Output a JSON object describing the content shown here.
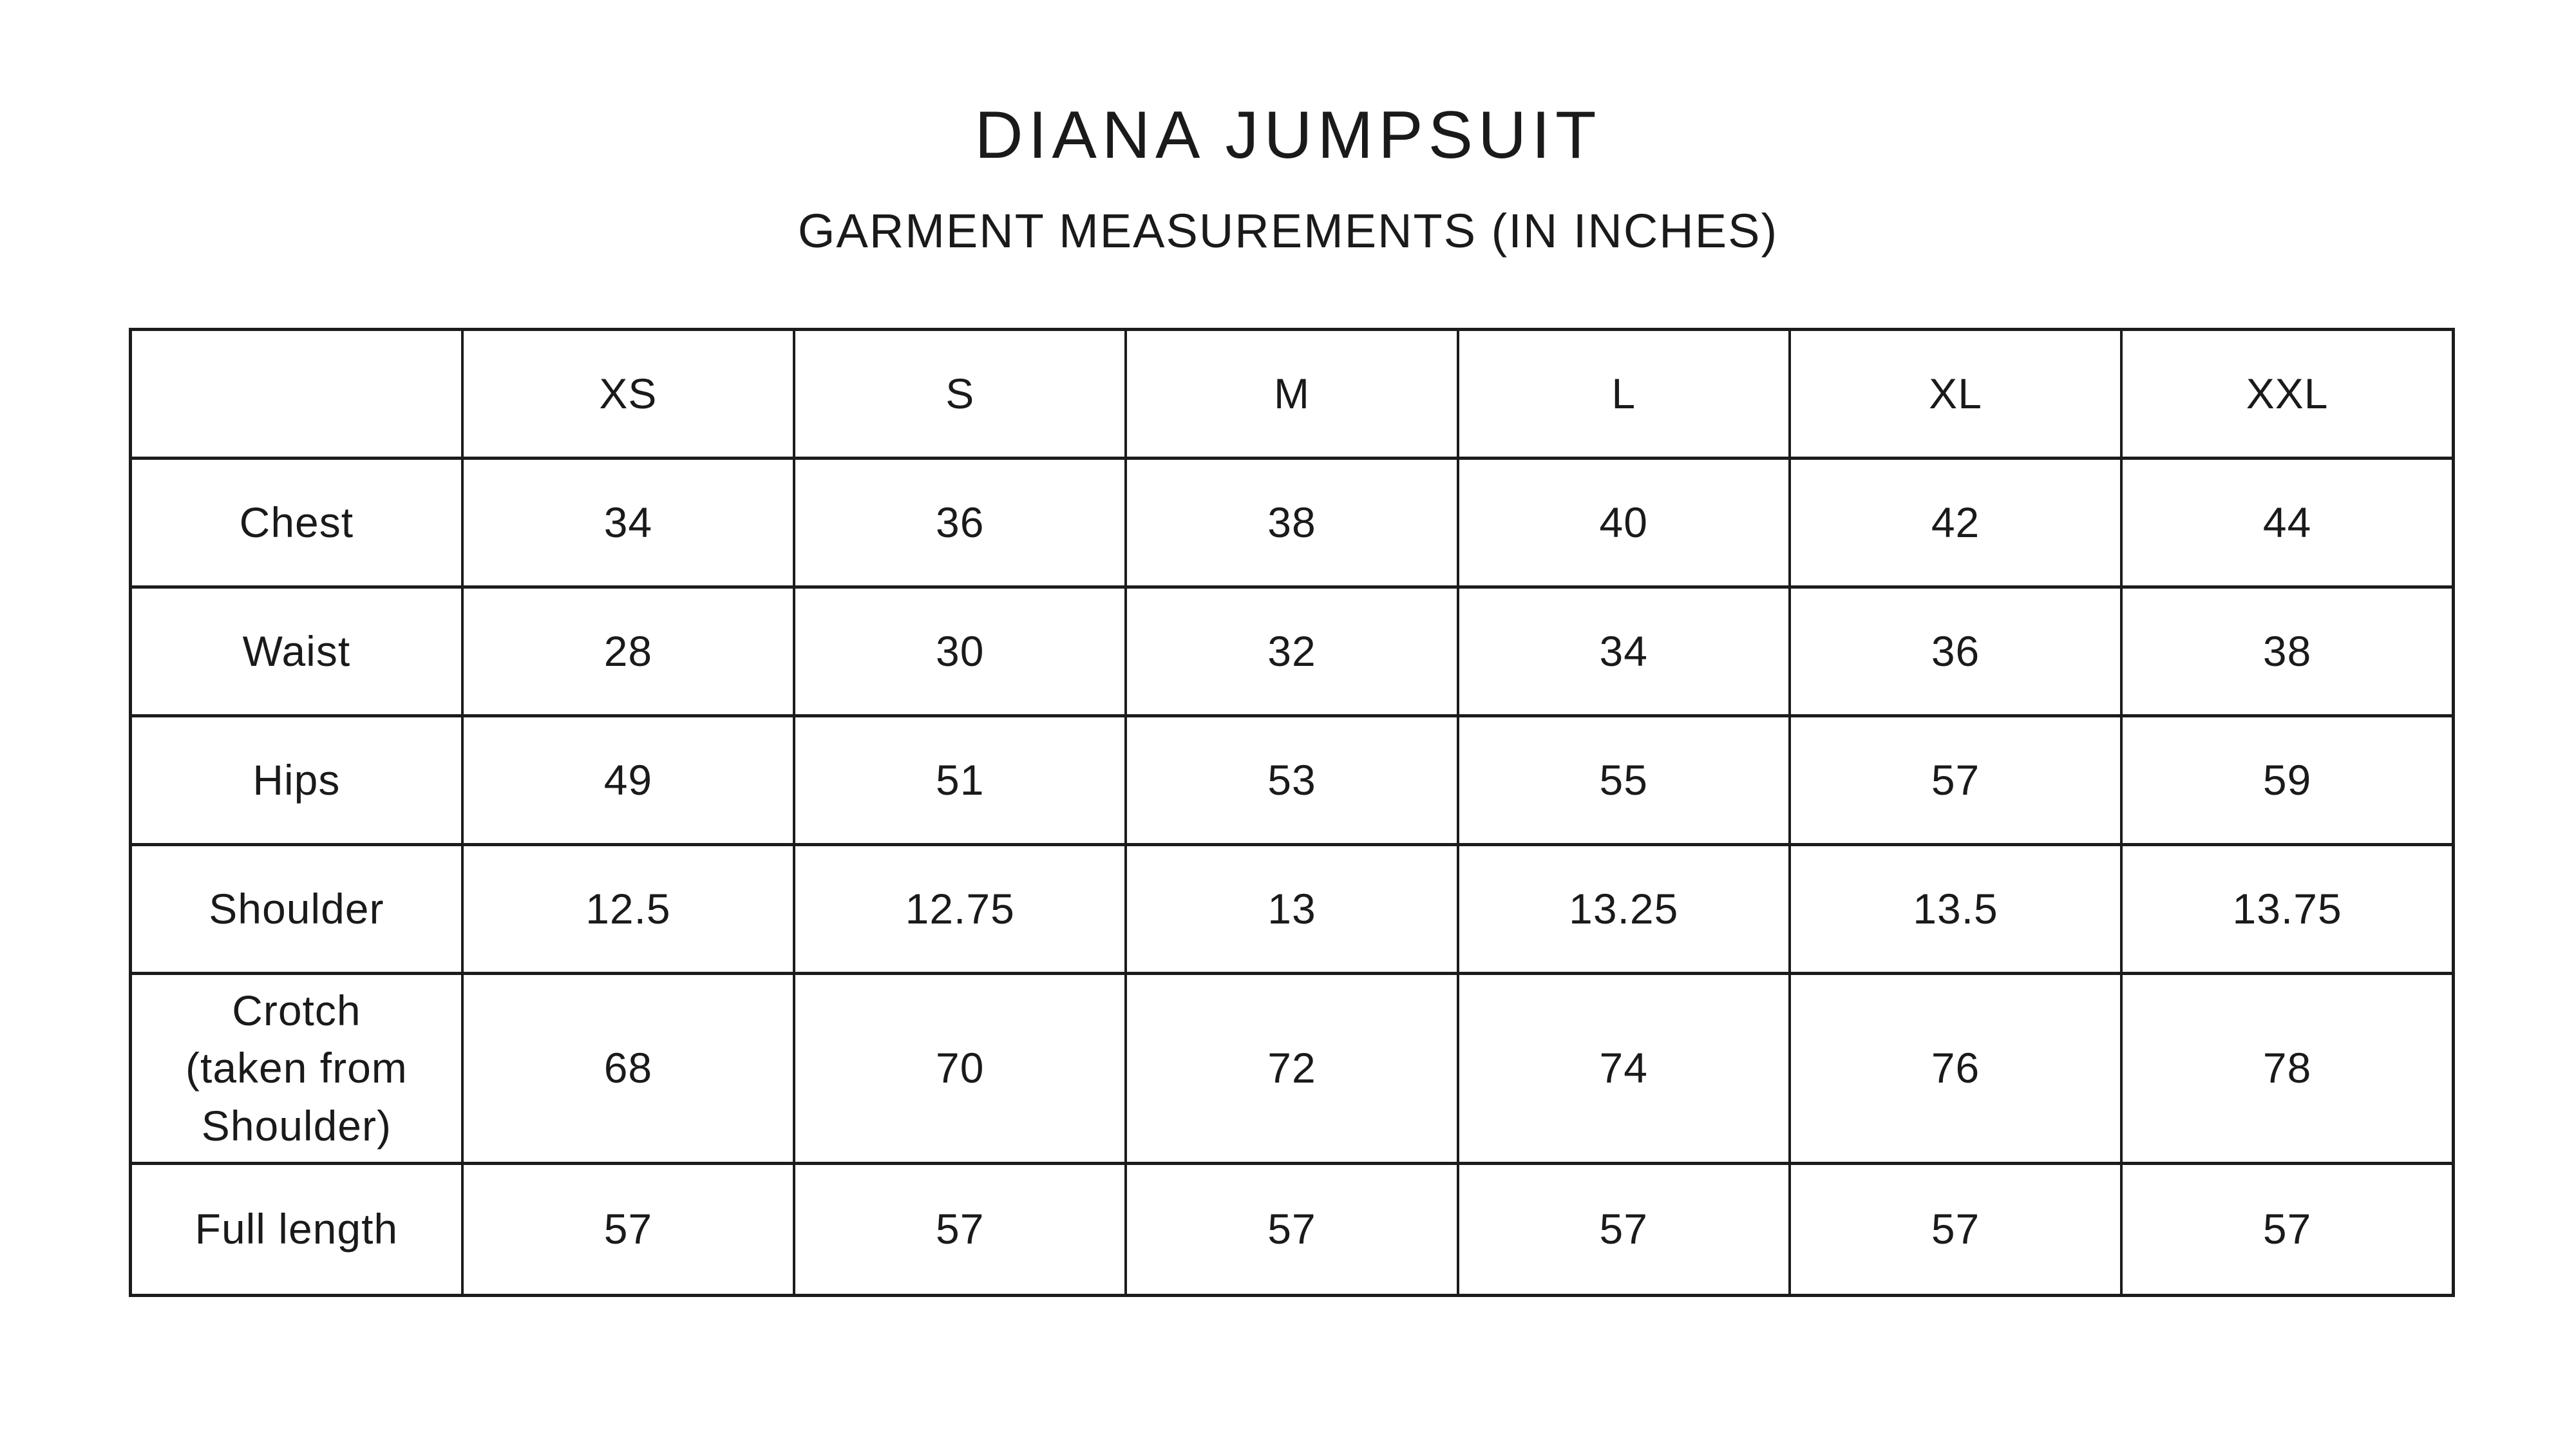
{
  "page": {
    "title": "DIANA JUMPSUIT",
    "subtitle": "GARMENT MEASUREMENTS (IN INCHES)"
  },
  "colors": {
    "background": "#ffffff",
    "text": "#1a1a1a",
    "border": "#1c1c1c"
  },
  "chart_data": {
    "type": "table",
    "title": "DIANA JUMPSUIT",
    "subtitle": "GARMENT MEASUREMENTS (IN INCHES)",
    "units": "inches",
    "columns": [
      "",
      "XS",
      "S",
      "M",
      "L",
      "XL",
      "XXL"
    ],
    "rows": [
      {
        "label": "Chest",
        "values": [
          34,
          36,
          38,
          40,
          42,
          44
        ]
      },
      {
        "label": "Waist",
        "values": [
          28,
          30,
          32,
          34,
          36,
          38
        ]
      },
      {
        "label": "Hips",
        "values": [
          49,
          51,
          53,
          55,
          57,
          59
        ]
      },
      {
        "label": "Shoulder",
        "values": [
          12.5,
          12.75,
          13,
          13.25,
          13.5,
          13.75
        ]
      },
      {
        "label": "Crotch\n(taken from\nShoulder)",
        "values": [
          68,
          70,
          72,
          74,
          76,
          78
        ]
      },
      {
        "label": "Full length",
        "values": [
          57,
          57,
          57,
          57,
          57,
          57
        ]
      }
    ]
  }
}
